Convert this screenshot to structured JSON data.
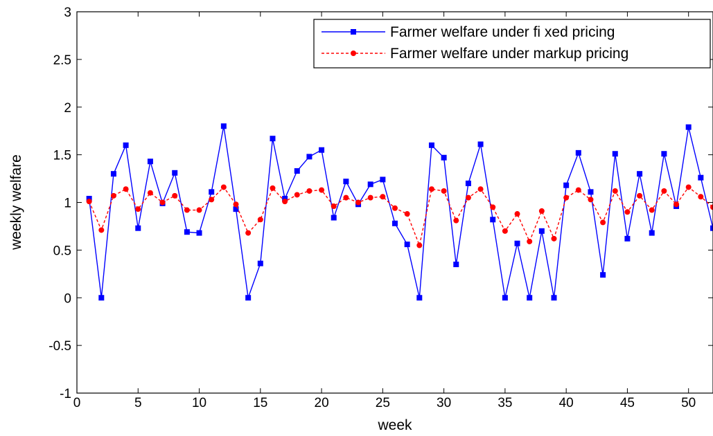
{
  "chart_data": {
    "type": "line",
    "title": "",
    "xlabel": "week",
    "ylabel": "weekly welfare",
    "xlim": [
      0,
      52
    ],
    "ylim": [
      -1,
      3
    ],
    "xticks": [
      "0",
      "5",
      "10",
      "15",
      "20",
      "25",
      "30",
      "35",
      "40",
      "45",
      "50"
    ],
    "yticks": [
      "-1",
      "-0.5",
      "0",
      "0.5",
      "1",
      "1.5",
      "2",
      "2.5",
      "3"
    ],
    "grid": false,
    "legend_position": "top-right",
    "x": [
      1,
      2,
      3,
      4,
      5,
      6,
      7,
      8,
      9,
      10,
      11,
      12,
      13,
      14,
      15,
      16,
      17,
      18,
      19,
      20,
      21,
      22,
      23,
      24,
      25,
      26,
      27,
      28,
      29,
      30,
      31,
      32,
      33,
      34,
      35,
      36,
      37,
      38,
      39,
      40,
      41,
      42,
      43,
      44,
      45,
      46,
      47,
      48,
      49,
      50,
      51,
      52
    ],
    "series": [
      {
        "name": "Farmer welfare under fi xed pricing",
        "color": "#0000ff",
        "line_style": "solid",
        "marker": "square",
        "values": [
          1.04,
          0.0,
          1.3,
          1.6,
          0.73,
          1.43,
          0.99,
          1.31,
          0.69,
          0.68,
          1.11,
          1.8,
          0.93,
          0.0,
          0.36,
          1.67,
          1.04,
          1.33,
          1.48,
          1.55,
          0.84,
          1.22,
          0.98,
          1.19,
          1.24,
          0.78,
          0.56,
          0.0,
          1.6,
          1.47,
          0.35,
          1.2,
          1.61,
          0.82,
          0.0,
          0.57,
          0.0,
          0.7,
          0.0,
          1.18,
          1.52,
          1.11,
          0.24,
          1.51,
          0.62,
          1.3,
          0.68,
          1.51,
          0.96,
          1.79,
          1.26,
          0.73
        ]
      },
      {
        "name": "Farmer welfare under markup pricing",
        "color": "#ff0000",
        "line_style": "dashed",
        "marker": "circle",
        "values": [
          1.01,
          0.71,
          1.07,
          1.14,
          0.93,
          1.1,
          1.0,
          1.07,
          0.92,
          0.92,
          1.03,
          1.16,
          0.98,
          0.68,
          0.82,
          1.15,
          1.01,
          1.08,
          1.12,
          1.13,
          0.96,
          1.05,
          1.0,
          1.05,
          1.06,
          0.94,
          0.88,
          0.55,
          1.14,
          1.12,
          0.81,
          1.05,
          1.14,
          0.95,
          0.7,
          0.88,
          0.59,
          0.91,
          0.62,
          1.05,
          1.13,
          1.03,
          0.79,
          1.12,
          0.9,
          1.07,
          0.92,
          1.12,
          0.98,
          1.16,
          1.06,
          0.95
        ]
      }
    ]
  }
}
